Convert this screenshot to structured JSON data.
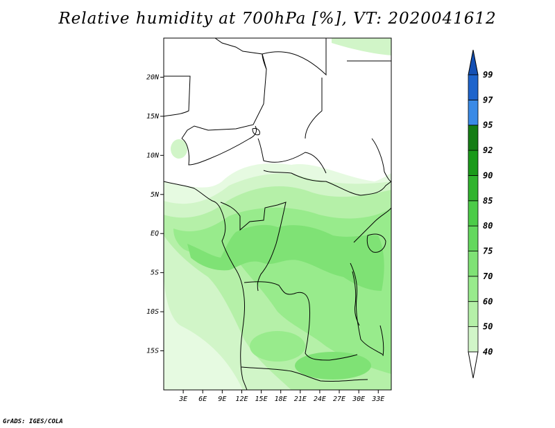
{
  "title": "Relative humidity at 700hPa [%], VT: 2020041612",
  "credit": "GrADS: IGES/COLA",
  "map": {
    "lon_range": [
      0,
      35
    ],
    "lat_range": [
      -20,
      25
    ],
    "lat_ticks": [
      {
        "value": 20,
        "label": "20N"
      },
      {
        "value": 15,
        "label": "15N"
      },
      {
        "value": 10,
        "label": "10N"
      },
      {
        "value": 5,
        "label": "5N"
      },
      {
        "value": 0,
        "label": "EQ"
      },
      {
        "value": -5,
        "label": "5S"
      },
      {
        "value": -10,
        "label": "10S"
      },
      {
        "value": -15,
        "label": "15S"
      }
    ],
    "lon_ticks": [
      {
        "value": 3,
        "label": "3E"
      },
      {
        "value": 6,
        "label": "6E"
      },
      {
        "value": 9,
        "label": "9E"
      },
      {
        "value": 12,
        "label": "12E"
      },
      {
        "value": 15,
        "label": "15E"
      },
      {
        "value": 18,
        "label": "18E"
      },
      {
        "value": 21,
        "label": "21E"
      },
      {
        "value": 24,
        "label": "24E"
      },
      {
        "value": 27,
        "label": "27E"
      },
      {
        "value": 30,
        "label": "30E"
      },
      {
        "value": 33,
        "label": "33E"
      }
    ]
  },
  "colorbar": {
    "levels": [
      {
        "label": "40",
        "color": "#e6fae1"
      },
      {
        "label": "50",
        "color": "#d1f5c8"
      },
      {
        "label": "60",
        "color": "#b5f0a8"
      },
      {
        "label": "70",
        "color": "#98eb8c"
      },
      {
        "label": "75",
        "color": "#7fe275"
      },
      {
        "label": "80",
        "color": "#64d85e"
      },
      {
        "label": "85",
        "color": "#4ccc48"
      },
      {
        "label": "90",
        "color": "#30b42e"
      },
      {
        "label": "92",
        "color": "#1a9a1a"
      },
      {
        "label": "95",
        "color": "#157d15"
      },
      {
        "label": "97",
        "color": "#3a8ae6"
      },
      {
        "label": "99",
        "color": "#1e64cc"
      }
    ],
    "top_color": "#1450b4",
    "bottom_color": "#ffffff"
  },
  "fill_colors": {
    "lightest": "#e6fae1",
    "light": "#d1f5c8",
    "mid": "#b5f0a8",
    "medium": "#98eb8c",
    "strong": "#7fe275"
  }
}
